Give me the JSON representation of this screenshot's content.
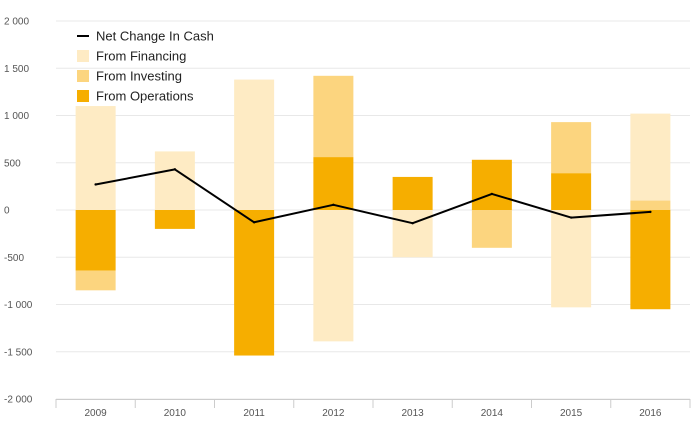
{
  "chart_data": {
    "type": "bar",
    "categories": [
      "2009",
      "2010",
      "2011",
      "2012",
      "2013",
      "2014",
      "2015",
      "2016"
    ],
    "series": [
      {
        "name": "From Operations",
        "kind": "bar",
        "color": "#F6AE00",
        "values": [
          -640,
          -200,
          -1540,
          560,
          350,
          530,
          390,
          -1050
        ]
      },
      {
        "name": "From Investing",
        "kind": "bar",
        "color": "#FCD57F",
        "values": [
          -210,
          0,
          0,
          860,
          0,
          -400,
          540,
          100
        ]
      },
      {
        "name": "From Financing",
        "kind": "bar",
        "color": "#FEEBC4",
        "values": [
          1100,
          620,
          1380,
          -1390,
          -500,
          10,
          -1030,
          920
        ]
      },
      {
        "name": "Net Change In Cash",
        "kind": "line",
        "color": "#000000",
        "values": [
          270,
          430,
          -130,
          55,
          -140,
          170,
          -80,
          -20
        ]
      }
    ],
    "ylim": [
      -2000,
      2000
    ],
    "yticks": [
      2000,
      1500,
      1000,
      500,
      0,
      -500,
      -1000,
      -1500,
      -2000
    ],
    "ytick_labels": [
      "2 000",
      "1 500",
      "1 000",
      "500",
      "0",
      "-500",
      "-1 000",
      "-1 500",
      "-2 000"
    ],
    "stacking": "stacked",
    "grid": true,
    "legend_position": "top-left"
  }
}
